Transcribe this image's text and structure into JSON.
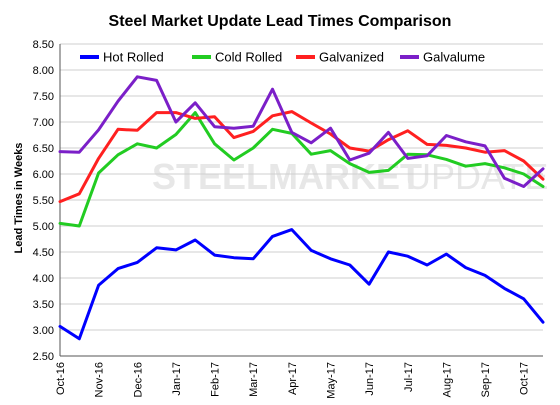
{
  "watermark": {
    "bold_word": "STEEL",
    "bold_word2": "MARKET",
    "light_word": "UPDATE"
  },
  "chart_data": {
    "type": "line",
    "title": "Steel Market Update Lead Times Comparison",
    "ylabel": "Lead Times in Weeks",
    "xlabel": "",
    "ylim": [
      2.5,
      8.5
    ],
    "yticks": [
      2.5,
      3.0,
      3.5,
      4.0,
      4.5,
      5.0,
      5.5,
      6.0,
      6.5,
      7.0,
      7.5,
      8.0,
      8.5
    ],
    "xtick_labels": [
      "Oct-16",
      "Nov-16",
      "Dec-16",
      "Jan-17",
      "Feb-17",
      "Mar-17",
      "Apr-17",
      "May-17",
      "Jun-17",
      "Jul-17",
      "Aug-17",
      "Sep-17",
      "Oct-17"
    ],
    "xtick_positions": [
      0,
      2,
      4,
      6,
      8,
      10,
      12,
      14,
      16,
      18,
      20,
      22,
      24
    ],
    "grid": "horizontal",
    "legend": "top",
    "series": [
      {
        "name": "Hot Rolled",
        "color": "#0000ff",
        "values": [
          3.07,
          2.83,
          3.86,
          4.18,
          4.3,
          4.58,
          4.54,
          4.73,
          4.44,
          4.39,
          4.37,
          4.8,
          4.93,
          4.53,
          4.37,
          4.25,
          3.88,
          4.5,
          4.42,
          4.25,
          4.46,
          4.2,
          4.05,
          3.8,
          3.6,
          3.15
        ]
      },
      {
        "name": "Cold Rolled",
        "color": "#22cc22",
        "values": [
          5.05,
          5.0,
          6.02,
          6.37,
          6.58,
          6.5,
          6.76,
          7.18,
          6.58,
          6.27,
          6.5,
          6.86,
          6.78,
          6.38,
          6.45,
          6.2,
          6.03,
          6.07,
          6.38,
          6.37,
          6.28,
          6.15,
          6.2,
          6.12,
          6.0,
          5.76
        ]
      },
      {
        "name": "Galvanized",
        "color": "#ff2020",
        "values": [
          5.47,
          5.62,
          6.3,
          6.86,
          6.84,
          7.18,
          7.18,
          7.07,
          7.1,
          6.7,
          6.82,
          7.12,
          7.2,
          6.98,
          6.77,
          6.5,
          6.44,
          6.66,
          6.83,
          6.57,
          6.55,
          6.5,
          6.42,
          6.45,
          6.25,
          5.9
        ]
      },
      {
        "name": "Galvalume",
        "color": "#7b1fc8",
        "values": [
          6.43,
          6.42,
          6.85,
          7.4,
          7.87,
          7.8,
          7.0,
          7.37,
          6.91,
          6.88,
          6.92,
          7.63,
          6.8,
          6.6,
          6.88,
          6.27,
          6.4,
          6.8,
          6.3,
          6.35,
          6.74,
          6.62,
          6.54,
          5.92,
          5.76,
          6.1
        ]
      }
    ]
  }
}
